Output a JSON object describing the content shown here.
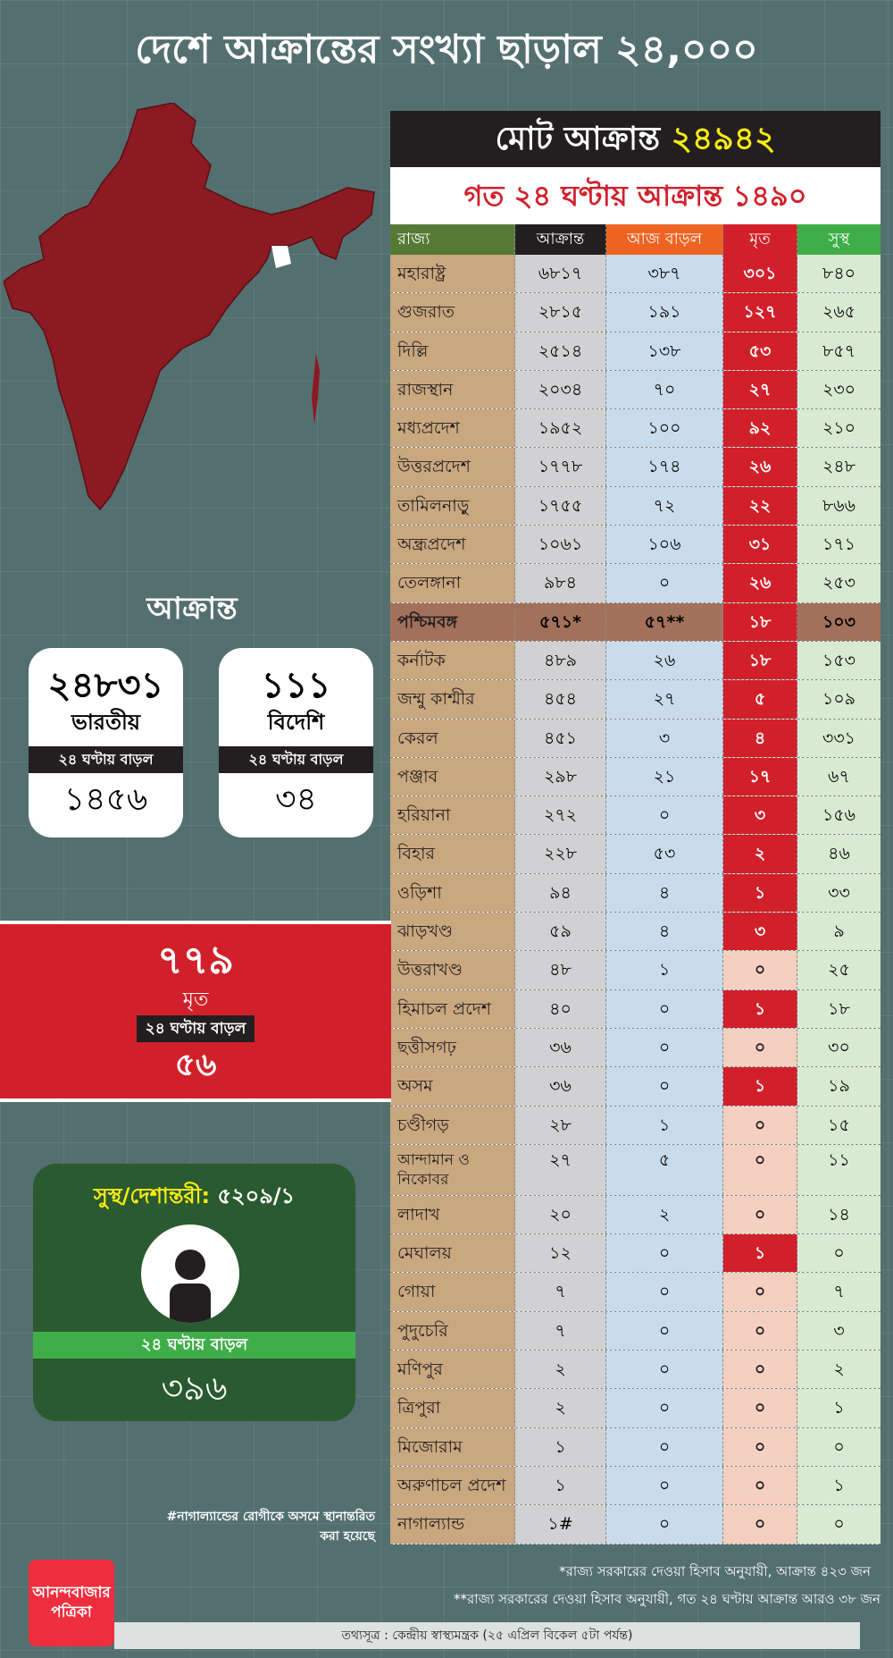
{
  "title": "দেশে আক্রান্তের সংখ্যা ছাড়াল ২৪,০০০",
  "colors": {
    "background": "#546f6f",
    "death_red": "#d2202b",
    "map": "#8b1a22",
    "recovered_green": "#2a5a2f",
    "highlight_yellow": "#f7ec13"
  },
  "total": {
    "label": "মোট আক্রান্ত",
    "value": "২৪৯৪২"
  },
  "last24": {
    "label": "গত ২৪ ঘণ্টায় আক্রান্ত",
    "value": "১৪৯০"
  },
  "table": {
    "headers": [
      "রাজ্য",
      "আক্রান্ত",
      "আজ বাড়ল",
      "মৃত",
      "সুস্থ"
    ],
    "rows": [
      [
        "মহারাষ্ট্র",
        "৬৮১৭",
        "৩৮৭",
        "৩০১",
        "৮৪০"
      ],
      [
        "গুজরাত",
        "২৮১৫",
        "১৯১",
        "১২৭",
        "২৬৫"
      ],
      [
        "দিল্লি",
        "২৫১৪",
        "১৩৮",
        "৫৩",
        "৮৫৭"
      ],
      [
        "রাজস্থান",
        "২০৩৪",
        "৭০",
        "২৭",
        "২৩০"
      ],
      [
        "মধ্যপ্রদেশ",
        "১৯৫২",
        "১০০",
        "৯২",
        "২১০"
      ],
      [
        "উত্তরপ্রদেশ",
        "১৭৭৮",
        "১৭৪",
        "২৬",
        "২৪৮"
      ],
      [
        "তামিলনাড়ু",
        "১৭৫৫",
        "৭২",
        "২২",
        "৮৬৬"
      ],
      [
        "অন্ধ্রপ্রদেশ",
        "১০৬১",
        "১০৬",
        "৩১",
        "১৭১"
      ],
      [
        "তেলঙ্গানা",
        "৯৮৪",
        "০",
        "২৬",
        "২৫৩"
      ],
      [
        "পশ্চিমবঙ্গ",
        "৫৭১*",
        "৫৭**",
        "১৮",
        "১০৩"
      ],
      [
        "কর্নাটক",
        "৪৮৯",
        "২৬",
        "১৮",
        "১৫৩"
      ],
      [
        "জম্মু কাশ্মীর",
        "৪৫৪",
        "২৭",
        "৫",
        "১০৯"
      ],
      [
        "কেরল",
        "৪৫১",
        "৩",
        "৪",
        "৩৩১"
      ],
      [
        "পঞ্জাব",
        "২৯৮",
        "২১",
        "১৭",
        "৬৭"
      ],
      [
        "হরিয়ানা",
        "২৭২",
        "০",
        "৩",
        "১৫৬"
      ],
      [
        "বিহার",
        "২২৮",
        "৫৩",
        "২",
        "৪৬"
      ],
      [
        "ওড়িশা",
        "৯৪",
        "৪",
        "১",
        "৩৩"
      ],
      [
        "ঝাড়খণ্ড",
        "৫৯",
        "৪",
        "৩",
        "৯"
      ],
      [
        "উত্তরাখণ্ড",
        "৪৮",
        "১",
        "০",
        "২৫"
      ],
      [
        "হিমাচল প্রদেশ",
        "৪০",
        "০",
        "১",
        "১৮"
      ],
      [
        "ছত্তীসগঢ়",
        "৩৬",
        "০",
        "০",
        "৩০"
      ],
      [
        "অসম",
        "৩৬",
        "০",
        "১",
        "১৯"
      ],
      [
        "চণ্ডীগড়",
        "২৮",
        "১",
        "০",
        "১৫"
      ],
      [
        "আন্দামান ও নিকোবর",
        "২৭",
        "৫",
        "০",
        "১১"
      ],
      [
        "লাদাখ",
        "২০",
        "২",
        "০",
        "১৪"
      ],
      [
        "মেঘালয়",
        "১২",
        "০",
        "১",
        "০"
      ],
      [
        "গোয়া",
        "৭",
        "০",
        "০",
        "৭"
      ],
      [
        "পুদুচেরি",
        "৭",
        "০",
        "০",
        "৩"
      ],
      [
        "মণিপুর",
        "২",
        "০",
        "০",
        "২"
      ],
      [
        "ত্রিপুরা",
        "২",
        "০",
        "০",
        "১"
      ],
      [
        "মিজোরাম",
        "১",
        "০",
        "০",
        "০"
      ],
      [
        "অরুণাচল প্রদেশ",
        "১",
        "০",
        "০",
        "১"
      ],
      [
        "নাগাল্যান্ড",
        "১#",
        "০",
        "০",
        "০"
      ]
    ]
  },
  "infected_heading": "আক্রান্ত",
  "indian": {
    "value": "২৪৮৩১",
    "label": "ভারতীয়",
    "band": "২৪ ঘণ্টায় বাড়ল",
    "increase": "১৪৫৬"
  },
  "foreign": {
    "value": "১১১",
    "label": "বিদেশি",
    "band": "২৪ ঘণ্টায় বাড়ল",
    "increase": "৩৪"
  },
  "deaths": {
    "value": "৭৭৯",
    "label": "মৃত",
    "band": "২৪ ঘণ্টায় বাড়ল",
    "increase": "৫৬"
  },
  "recovered": {
    "label": "সুস্থ/দেশান্তরী:",
    "value": "৫২০৯/১",
    "band": "২৪ ঘণ্টায় বাড়ল",
    "increase": "৩৯৬",
    "icon": "person-icon"
  },
  "note": "#নাগাল্যান্ডের রোগীকে অসমে স্থানান্তরিত করা হয়েছে",
  "footnote1": "*রাজ্য সরকারের দেওয়া হিসাব অনুযায়ী, আক্রান্ত ৪২৩ জন",
  "footnote2": "**রাজ্য সরকারের দেওয়া হিসাব অনুযায়ী, গত ২৪ ঘণ্টায় আক্রান্ত আরও ৩৮ জন",
  "logo": "আনন্দবাজার পত্রিকা",
  "source": "তথ্যসূত্র : কেন্দ্রীয় স্বাস্থ্যমন্ত্রক (২৫ এপ্রিল বিকেল ৫টা পর্যন্ত)"
}
